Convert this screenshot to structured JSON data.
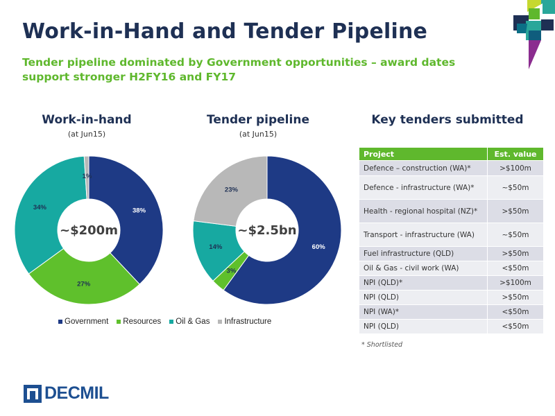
{
  "title": "Work-in-Hand and Tender Pipeline",
  "subtitle": "Tender pipeline dominated by Government opportunities – award dates support stronger H2FY16 and FY17",
  "colors": {
    "government": "#1e3a85",
    "resources": "#5fc02c",
    "oil_gas": "#17a9a1",
    "infrastructure": "#b8b8b8",
    "header_green": "#5fb82d"
  },
  "chart_data": [
    {
      "type": "pie",
      "title": "Work-in-hand",
      "subtitle": "(at Jun15)",
      "center_label": "~$200m",
      "categories": [
        "Government",
        "Resources",
        "Oil & Gas",
        "Infrastructure"
      ],
      "values": [
        38,
        27,
        34,
        1
      ],
      "labels": [
        "38%",
        "27%",
        "34%",
        "1%"
      ]
    },
    {
      "type": "pie",
      "title": "Tender pipeline",
      "subtitle": "(at Jun15)",
      "center_label": "~$2.5bn",
      "categories": [
        "Government",
        "Resources",
        "Oil & Gas",
        "Infrastructure"
      ],
      "values": [
        60,
        3,
        14,
        23
      ],
      "labels": [
        "60%",
        "3%",
        "14%",
        "23%"
      ]
    }
  ],
  "legend": [
    {
      "label": "Government",
      "color": "#1e3a85"
    },
    {
      "label": "Resources",
      "color": "#5fc02c"
    },
    {
      "label": "Oil & Gas",
      "color": "#17a9a1"
    },
    {
      "label": "Infrastructure",
      "color": "#b8b8b8"
    }
  ],
  "tenders": {
    "title": "Key tenders submitted",
    "headers": [
      "Project",
      "Est. value"
    ],
    "rows": [
      [
        "Defence – construction (WA)*",
        ">$100m"
      ],
      [
        "Defence - infrastructure (WA)*",
        "~$50m"
      ],
      [
        "Health - regional hospital (NZ)*",
        ">$50m"
      ],
      [
        "Transport - infrastructure (WA)",
        "~$50m"
      ],
      [
        "Fuel infrastructure (QLD)",
        ">$50m"
      ],
      [
        "Oil & Gas  - civil work (WA)",
        "<$50m"
      ],
      [
        "NPI (QLD)*",
        ">$100m"
      ],
      [
        "NPI (QLD)",
        ">$50m"
      ],
      [
        "NPI (WA)*",
        "<$50m"
      ],
      [
        "NPI (QLD)",
        "<$50m"
      ]
    ],
    "footnote": "* Shortlisted"
  },
  "logo": {
    "text": "DECMIL"
  }
}
